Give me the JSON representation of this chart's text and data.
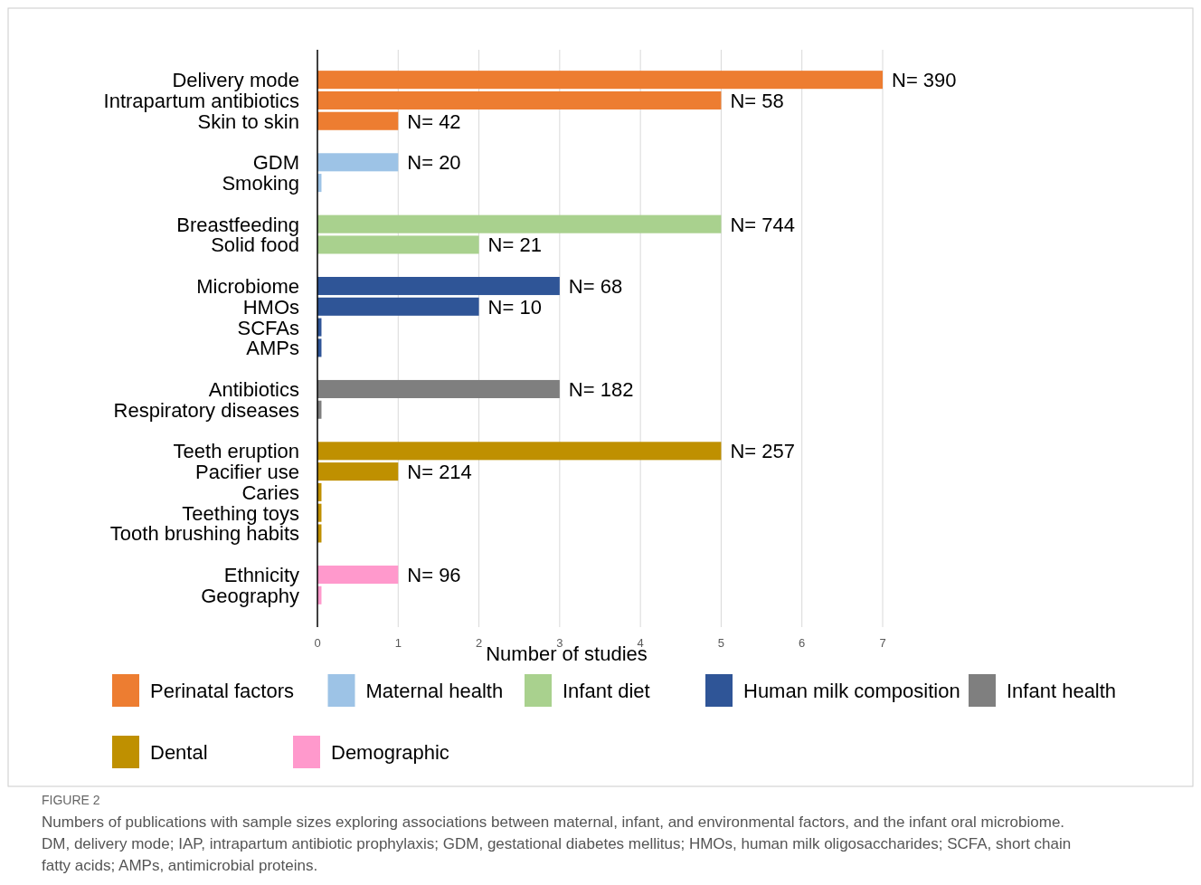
{
  "chart_data": {
    "type": "bar",
    "orientation": "horizontal",
    "xlabel": "Number of studies",
    "categories": [
      "Delivery mode",
      "Intrapartum antibiotics",
      "Skin to skin",
      null,
      "GDM",
      "Smoking",
      null,
      "Breastfeeding",
      "Solid food",
      null,
      "Microbiome",
      "HMOs",
      "SCFAs",
      "AMPs",
      null,
      "Antibiotics",
      "Respiratory diseases",
      null,
      "Teeth eruption",
      "Pacifier use",
      "Caries",
      "Teething toys",
      "Tooth brushing habits",
      null,
      "Ethnicity",
      "Geography"
    ],
    "xlim": [
      0,
      7
    ],
    "xticks": [
      0,
      1,
      2,
      3,
      4,
      5,
      6,
      7
    ],
    "grid": "x",
    "legend": "bottom",
    "series": [
      {
        "name": "Perinatal factors",
        "color": "#ed7d31",
        "values": [
          7,
          5,
          1,
          null,
          null,
          null,
          null,
          null,
          null,
          null,
          null,
          null,
          null,
          null,
          null,
          null,
          null,
          null,
          null,
          null,
          null,
          null,
          null,
          null,
          null,
          null
        ]
      },
      {
        "name": "Maternal health",
        "color": "#9dc3e6",
        "values": [
          null,
          null,
          null,
          null,
          1,
          0.05,
          null,
          null,
          null,
          null,
          null,
          null,
          null,
          null,
          null,
          null,
          null,
          null,
          null,
          null,
          null,
          null,
          null,
          null,
          null,
          null
        ]
      },
      {
        "name": "Infant diet",
        "color": "#a9d18e",
        "values": [
          null,
          null,
          null,
          null,
          null,
          null,
          null,
          5,
          2,
          null,
          null,
          null,
          null,
          null,
          null,
          null,
          null,
          null,
          null,
          null,
          null,
          null,
          null,
          null,
          null,
          null
        ]
      },
      {
        "name": "Human milk composition",
        "color": "#2f5597",
        "values": [
          null,
          null,
          null,
          null,
          null,
          null,
          null,
          null,
          null,
          null,
          3,
          2,
          0.05,
          0.05,
          null,
          null,
          null,
          null,
          null,
          null,
          null,
          null,
          null,
          null,
          null,
          null
        ]
      },
      {
        "name": "Infant health",
        "color": "#7f7f7f",
        "values": [
          null,
          null,
          null,
          null,
          null,
          null,
          null,
          null,
          null,
          null,
          null,
          null,
          null,
          null,
          null,
          3,
          0.05,
          null,
          null,
          null,
          null,
          null,
          null,
          null,
          null,
          null
        ]
      },
      {
        "name": "Dental",
        "color": "#bf9000",
        "values": [
          null,
          null,
          null,
          null,
          null,
          null,
          null,
          null,
          null,
          null,
          null,
          null,
          null,
          null,
          null,
          null,
          null,
          null,
          5,
          1,
          0.05,
          0.05,
          0.05,
          null,
          null,
          null
        ]
      },
      {
        "name": "Demographic",
        "color": "#ff99cc",
        "values": [
          null,
          null,
          null,
          null,
          null,
          null,
          null,
          null,
          null,
          null,
          null,
          null,
          null,
          null,
          null,
          null,
          null,
          null,
          null,
          null,
          null,
          null,
          null,
          null,
          1,
          0.05
        ]
      }
    ],
    "annotations": [
      {
        "text": "N= 390",
        "x": 7,
        "y": "Delivery mode"
      },
      {
        "text": "N= 58",
        "x": 5,
        "y": "Intrapartum antibiotics"
      },
      {
        "text": "N= 42",
        "x": 1,
        "y": "Skin to skin"
      },
      {
        "text": "N= 20",
        "x": 1,
        "y": "GDM"
      },
      {
        "text": "N= 744",
        "x": 5,
        "y": "Breastfeeding"
      },
      {
        "text": "N= 21",
        "x": 2,
        "y": "Solid food"
      },
      {
        "text": "N= 68",
        "x": 3,
        "y": "Microbiome"
      },
      {
        "text": "N= 10",
        "x": 2,
        "y": "HMOs"
      },
      {
        "text": "N= 182",
        "x": 3,
        "y": "Antibiotics"
      },
      {
        "text": "N= 257",
        "x": 5,
        "y": "Teeth eruption"
      },
      {
        "text": "N= 214",
        "x": 1,
        "y": "Pacifier use"
      },
      {
        "text": "N= 96",
        "x": 1,
        "y": "Ethnicity"
      },
      "FIGURE 2",
      "Numbers of publications with sample sizes exploring associations between maternal, infant, and environmental factors, and the infant oral microbiome. DM, delivery mode; IAP, intrapartum antibiotic prophylaxis; GDM, gestational diabetes mellitus; HMOs, human milk oligosaccharides; SCFA, short chain fatty acids; AMPs, antimicrobial proteins."
    ]
  }
}
